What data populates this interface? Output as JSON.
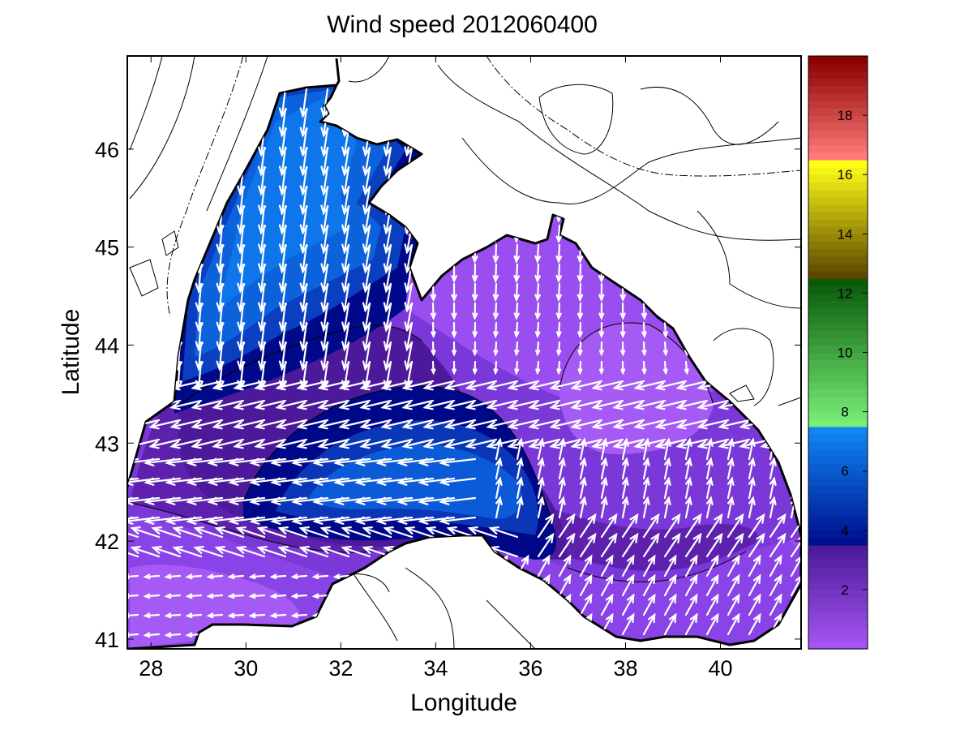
{
  "title": "Wind speed 2012060400",
  "axes": {
    "xlabel": "Longitude",
    "ylabel": "Latitude",
    "xlim": [
      27.5,
      41.7
    ],
    "ylim": [
      40.9,
      46.95
    ],
    "xticks": [
      "28",
      "30",
      "32",
      "34",
      "36",
      "38",
      "40"
    ],
    "yticks": [
      "41",
      "42",
      "43",
      "44",
      "45",
      "46"
    ]
  },
  "colorbar": {
    "range": [
      0,
      20
    ],
    "ticks": [
      "2",
      "4",
      "6",
      "8",
      "10",
      "12",
      "14",
      "16",
      "18"
    ],
    "segments": [
      {
        "from": 0,
        "to": 3.5,
        "color_low": "#a455f2",
        "color_high": "#4e1a9a"
      },
      {
        "from": 3.5,
        "to": 7.5,
        "color_low": "#000f8f",
        "color_high": "#0f86f2"
      },
      {
        "from": 7.5,
        "to": 12.5,
        "color_low": "#78ee78",
        "color_high": "#0a5a0a"
      },
      {
        "from": 12.5,
        "to": 16.5,
        "color_low": "#5e4800",
        "color_high": "#ffff16"
      },
      {
        "from": 16.5,
        "to": 20,
        "color_low": "#ff7a7a",
        "color_high": "#8b0000"
      }
    ]
  },
  "colors": {
    "land": "#ffffff",
    "coastline": "#000000",
    "arrows": "#ffffff",
    "speed_2": "#8f45e8",
    "speed_3": "#5a1fa8",
    "speed_4": "#00098a",
    "speed_5": "#0a3fc0",
    "speed_6": "#0b68e0"
  },
  "chart_data": {
    "type": "heatmap",
    "title": "Wind speed 2012060400",
    "xlabel": "Longitude",
    "ylabel": "Latitude",
    "xlim": [
      27.5,
      41.7
    ],
    "ylim": [
      40.9,
      46.95
    ],
    "colorbar_range": [
      0,
      20
    ],
    "grid": false
  }
}
